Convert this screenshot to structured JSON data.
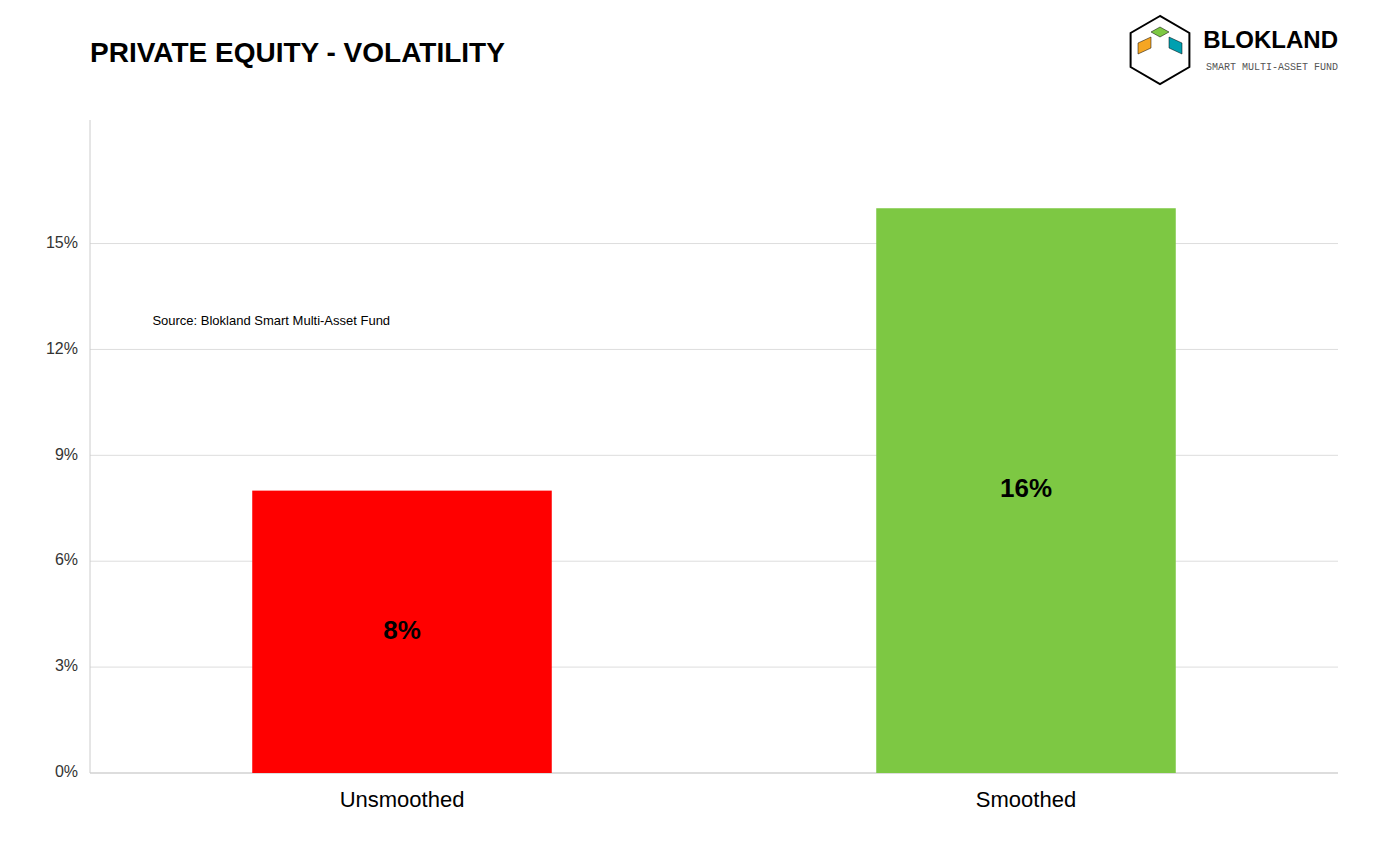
{
  "chart_data": {
    "type": "bar",
    "title": "PRIVATE EQUITY - VOLATILITY",
    "categories": [
      "Unsmoothed",
      "Smoothed"
    ],
    "values": [
      0.08,
      0.16
    ],
    "value_labels": [
      "8%",
      "16%"
    ],
    "colors": [
      "#ff0000",
      "#7dc843"
    ],
    "ylim": [
      0,
      0.185
    ],
    "yticks": [
      {
        "value": 0.0,
        "label": "0%"
      },
      {
        "value": 0.03,
        "label": "3%"
      },
      {
        "value": 0.06,
        "label": "6%"
      },
      {
        "value": 0.09,
        "label": "9%"
      },
      {
        "value": 0.12,
        "label": "12%"
      },
      {
        "value": 0.15,
        "label": "15%"
      }
    ],
    "grid": true,
    "data_labels": true,
    "annotations": [
      "Source: Blokland Smart Multi-Asset Fund",
      "BLOKLAND",
      "SMART MULTI-ASSET FUND"
    ]
  }
}
